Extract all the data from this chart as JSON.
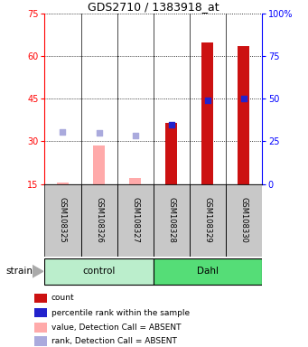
{
  "title": "GDS2710 / 1383918_at",
  "samples": [
    "GSM108325",
    "GSM108326",
    "GSM108327",
    "GSM108328",
    "GSM108329",
    "GSM108330"
  ],
  "group_colors": [
    "#bbeecc",
    "#55dd77"
  ],
  "ylim_left": [
    15,
    75
  ],
  "ylim_right": [
    0,
    100
  ],
  "yticks_left": [
    15,
    30,
    45,
    60,
    75
  ],
  "yticks_right": [
    0,
    25,
    50,
    75,
    100
  ],
  "ytick_labels_right": [
    "0",
    "25",
    "50",
    "75",
    "100%"
  ],
  "bar_bottom": 15,
  "red_bars": [
    null,
    null,
    null,
    36.5,
    65.0,
    63.5
  ],
  "blue_squares": [
    null,
    null,
    null,
    36.0,
    44.5,
    45.0
  ],
  "pink_bars": [
    15.5,
    28.5,
    17.0,
    null,
    null,
    null
  ],
  "light_blue_squares": [
    33.5,
    33.0,
    32.0,
    null,
    null,
    null
  ],
  "detection_absent": [
    true,
    true,
    true,
    false,
    false,
    false
  ],
  "red_bar_color": "#cc1111",
  "blue_sq_color": "#2222cc",
  "pink_bar_color": "#ffaaaa",
  "light_blue_sq_color": "#aaaadd",
  "bg_sample_box": "#c8c8c8",
  "legend_items": [
    {
      "color": "#cc1111",
      "label": "count"
    },
    {
      "color": "#2222cc",
      "label": "percentile rank within the sample"
    },
    {
      "color": "#ffaaaa",
      "label": "value, Detection Call = ABSENT"
    },
    {
      "color": "#aaaadd",
      "label": "rank, Detection Call = ABSENT"
    }
  ]
}
